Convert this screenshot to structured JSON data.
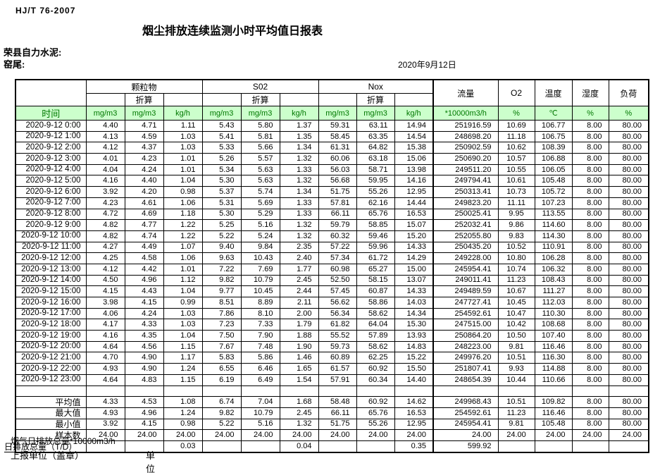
{
  "meta": {
    "standard": "HJ/T  76-2007",
    "title": "烟尘排放连续监测小时平均值日报表",
    "company": "荣县自力水泥:",
    "point": "窑尾:",
    "date": "2020年9月12日"
  },
  "table": {
    "header": {
      "time_label": "时间",
      "group_pm": "颗粒物",
      "group_so2": "S02",
      "group_nox": "Nox",
      "converted_label": "折算",
      "flow_label": "流量",
      "o2_label": "O2",
      "temp_label": "温度",
      "humidity_label": "湿度",
      "load_label": "负荷",
      "units": [
        "mg/m3",
        "mg/m3",
        "kg/h",
        "mg/m3",
        "mg/m3",
        "kg/h",
        "mg/m3",
        "mg/m3",
        "kg/h",
        "*10000m3/h",
        "%",
        "℃",
        "%",
        "%"
      ]
    },
    "rows": [
      {
        "time": "2020-9-12  0:00",
        "v": [
          "4.40",
          "4.71",
          "1.11",
          "5.43",
          "5.80",
          "1.37",
          "59.31",
          "63.11",
          "14.94",
          "251916.59",
          "10.69",
          "106.77",
          "8.00",
          "80.00"
        ]
      },
      {
        "time": "2020-9-12  1:00",
        "v": [
          "4.13",
          "4.59",
          "1.03",
          "5.41",
          "5.81",
          "1.35",
          "58.45",
          "63.35",
          "14.54",
          "248698.20",
          "11.18",
          "106.75",
          "8.00",
          "80.00"
        ]
      },
      {
        "time": "2020-9-12  2:00",
        "v": [
          "4.12",
          "4.37",
          "1.03",
          "5.33",
          "5.66",
          "1.34",
          "61.31",
          "64.82",
          "15.38",
          "250902.59",
          "10.62",
          "108.39",
          "8.00",
          "80.00"
        ]
      },
      {
        "time": "2020-9-12  3:00",
        "v": [
          "4.01",
          "4.23",
          "1.01",
          "5.26",
          "5.57",
          "1.32",
          "60.06",
          "63.18",
          "15.06",
          "250690.20",
          "10.57",
          "106.88",
          "8.00",
          "80.00"
        ]
      },
      {
        "time": "2020-9-12  4:00",
        "v": [
          "4.04",
          "4.24",
          "1.01",
          "5.34",
          "5.63",
          "1.33",
          "56.03",
          "58.71",
          "13.98",
          "249511.20",
          "10.55",
          "106.05",
          "8.00",
          "80.00"
        ]
      },
      {
        "time": "2020-9-12  5:00",
        "v": [
          "4.16",
          "4.40",
          "1.04",
          "5.30",
          "5.63",
          "1.32",
          "56.68",
          "59.95",
          "14.16",
          "249794.41",
          "10.61",
          "105.48",
          "8.00",
          "80.00"
        ]
      },
      {
        "time": "2020-9-12  6:00",
        "v": [
          "3.92",
          "4.20",
          "0.98",
          "5.37",
          "5.74",
          "1.34",
          "51.75",
          "55.26",
          "12.95",
          "250313.41",
          "10.73",
          "105.72",
          "8.00",
          "80.00"
        ]
      },
      {
        "time": "2020-9-12  7:00",
        "v": [
          "4.23",
          "4.61",
          "1.06",
          "5.31",
          "5.69",
          "1.33",
          "57.81",
          "62.16",
          "14.44",
          "249823.20",
          "11.11",
          "107.23",
          "8.00",
          "80.00"
        ]
      },
      {
        "time": "2020-9-12  8:00",
        "v": [
          "4.72",
          "4.69",
          "1.18",
          "5.30",
          "5.29",
          "1.33",
          "66.11",
          "65.76",
          "16.53",
          "250025.41",
          "9.95",
          "113.55",
          "8.00",
          "80.00"
        ]
      },
      {
        "time": "2020-9-12  9:00",
        "v": [
          "4.82",
          "4.77",
          "1.22",
          "5.25",
          "5.16",
          "1.32",
          "59.79",
          "58.85",
          "15.07",
          "252032.41",
          "9.86",
          "114.60",
          "8.00",
          "80.00"
        ]
      },
      {
        "time": "2020-9-12 10:00",
        "v": [
          "4.82",
          "4.74",
          "1.22",
          "5.22",
          "5.24",
          "1.32",
          "60.32",
          "59.46",
          "15.20",
          "252055.80",
          "9.83",
          "114.30",
          "8.00",
          "80.00"
        ]
      },
      {
        "time": "2020-9-12 11:00",
        "v": [
          "4.27",
          "4.49",
          "1.07",
          "9.40",
          "9.84",
          "2.35",
          "57.22",
          "59.96",
          "14.33",
          "250435.20",
          "10.52",
          "110.91",
          "8.00",
          "80.00"
        ]
      },
      {
        "time": "2020-9-12 12:00",
        "v": [
          "4.25",
          "4.58",
          "1.06",
          "9.63",
          "10.43",
          "2.40",
          "57.34",
          "61.72",
          "14.29",
          "249228.00",
          "10.80",
          "106.28",
          "8.00",
          "80.00"
        ]
      },
      {
        "time": "2020-9-12 13:00",
        "v": [
          "4.12",
          "4.42",
          "1.01",
          "7.22",
          "7.69",
          "1.77",
          "60.98",
          "65.27",
          "15.00",
          "245954.41",
          "10.74",
          "106.32",
          "8.00",
          "80.00"
        ]
      },
      {
        "time": "2020-9-12 14:00",
        "v": [
          "4.50",
          "4.96",
          "1.12",
          "9.82",
          "10.79",
          "2.45",
          "52.50",
          "58.15",
          "13.07",
          "249011.41",
          "11.23",
          "108.43",
          "8.00",
          "80.00"
        ]
      },
      {
        "time": "2020-9-12 15:00",
        "v": [
          "4.15",
          "4.43",
          "1.04",
          "9.77",
          "10.45",
          "2.44",
          "57.45",
          "60.87",
          "14.33",
          "249489.59",
          "10.67",
          "111.27",
          "8.00",
          "80.00"
        ]
      },
      {
        "time": "2020-9-12 16:00",
        "v": [
          "3.98",
          "4.15",
          "0.99",
          "8.51",
          "8.89",
          "2.11",
          "56.62",
          "58.86",
          "14.03",
          "247727.41",
          "10.45",
          "112.03",
          "8.00",
          "80.00"
        ]
      },
      {
        "time": "2020-9-12 17:00",
        "v": [
          "4.06",
          "4.24",
          "1.03",
          "7.86",
          "8.10",
          "2.00",
          "56.34",
          "58.62",
          "14.34",
          "254592.61",
          "10.47",
          "110.30",
          "8.00",
          "80.00"
        ]
      },
      {
        "time": "2020-9-12 18:00",
        "v": [
          "4.17",
          "4.33",
          "1.03",
          "7.23",
          "7.33",
          "1.79",
          "61.82",
          "64.04",
          "15.30",
          "247515.00",
          "10.42",
          "108.68",
          "8.00",
          "80.00"
        ]
      },
      {
        "time": "2020-9-12 19:00",
        "v": [
          "4.16",
          "4.35",
          "1.04",
          "7.50",
          "7.90",
          "1.88",
          "55.52",
          "57.89",
          "13.93",
          "250864.20",
          "10.50",
          "107.40",
          "8.00",
          "80.00"
        ]
      },
      {
        "time": "2020-9-12 20:00",
        "v": [
          "4.64",
          "4.56",
          "1.15",
          "7.67",
          "7.48",
          "1.90",
          "59.73",
          "58.62",
          "14.83",
          "248223.00",
          "9.81",
          "116.46",
          "8.00",
          "80.00"
        ]
      },
      {
        "time": "2020-9-12 21:00",
        "v": [
          "4.70",
          "4.90",
          "1.17",
          "5.83",
          "5.86",
          "1.46",
          "60.89",
          "62.25",
          "15.22",
          "249976.20",
          "10.51",
          "116.30",
          "8.00",
          "80.00"
        ]
      },
      {
        "time": "2020-9-12 22:00",
        "v": [
          "4.93",
          "4.90",
          "1.24",
          "6.55",
          "6.46",
          "1.65",
          "61.57",
          "60.92",
          "15.50",
          "251807.41",
          "9.93",
          "114.88",
          "8.00",
          "80.00"
        ]
      },
      {
        "time": "2020-9-12 23:00",
        "v": [
          "4.64",
          "4.83",
          "1.15",
          "6.19",
          "6.49",
          "1.54",
          "57.91",
          "60.34",
          "14.40",
          "248654.39",
          "10.44",
          "110.66",
          "8.00",
          "80.00"
        ]
      }
    ],
    "summary": [
      {
        "label": "平均值",
        "v": [
          "4.33",
          "4.53",
          "1.08",
          "6.74",
          "7.04",
          "1.68",
          "58.48",
          "60.92",
          "14.62",
          "249968.43",
          "10.51",
          "109.82",
          "8.00",
          "80.00"
        ]
      },
      {
        "label": "最大值",
        "v": [
          "4.93",
          "4.96",
          "1.24",
          "9.82",
          "10.79",
          "2.45",
          "66.11",
          "65.76",
          "16.53",
          "254592.61",
          "11.23",
          "116.46",
          "8.00",
          "80.00"
        ]
      },
      {
        "label": "最小值",
        "v": [
          "3.92",
          "4.15",
          "0.98",
          "5.22",
          "5.16",
          "1.32",
          "51.75",
          "55.26",
          "12.95",
          "245954.41",
          "9.81",
          "105.48",
          "8.00",
          "80.00"
        ]
      },
      {
        "label": "样本数",
        "v": [
          "24.00",
          "24.00",
          "24.00",
          "24.00",
          "24.00",
          "24.00",
          "24.00",
          "24.00",
          "24.00",
          "24.00",
          "24.00",
          "24.00",
          "24.00",
          "24.00"
        ]
      }
    ],
    "total_row": {
      "label": "日排放总量（T/D）",
      "v": [
        "",
        "",
        "0.03",
        "",
        "",
        "0.04",
        "",
        "",
        "0.35",
        "599.92",
        "",
        "",
        "",
        ""
      ]
    }
  },
  "footer": {
    "note": "烟气日排放总量*10000m3/h",
    "report_unit": "上报单位（盖章）",
    "unit": "单位"
  },
  "colors": {
    "header_bg": "#CCFFCC",
    "header_text": "#007700"
  }
}
